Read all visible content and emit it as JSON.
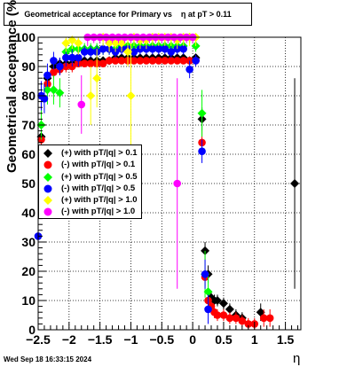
{
  "chart_data": {
    "type": "scatter",
    "title": "Geometrical acceptance for Primary vs    η at pT > 0.11",
    "xlabel": "η",
    "ylabel": "Geometrical acceptance (%)",
    "xlim": [
      -2.5,
      1.75
    ],
    "ylim": [
      0,
      100
    ],
    "x_ticks": [
      "−2.5",
      "−2",
      "−1.5",
      "−1",
      "−0.5",
      "0",
      "0.5",
      "1",
      "1.5"
    ],
    "y_ticks": [
      "0",
      "10",
      "20",
      "30",
      "40",
      "50",
      "60",
      "70",
      "80",
      "90",
      "100"
    ],
    "grid": true,
    "legend_position": "left-middle",
    "series": [
      {
        "name": "(+) with pT/|q| > 0.1",
        "color": "#000000",
        "marker": "diamond",
        "points": [
          [
            -2.45,
            66
          ],
          [
            -2.35,
            86
          ],
          [
            -2.25,
            90
          ],
          [
            -2.15,
            91
          ],
          [
            -2.05,
            91
          ],
          [
            -1.95,
            91
          ],
          [
            -1.85,
            92
          ],
          [
            -1.75,
            92
          ],
          [
            -1.65,
            92
          ],
          [
            -1.55,
            92
          ],
          [
            -1.45,
            92
          ],
          [
            -1.35,
            92
          ],
          [
            -1.25,
            93
          ],
          [
            -1.15,
            93
          ],
          [
            -1.05,
            93
          ],
          [
            -0.95,
            93
          ],
          [
            -0.85,
            93
          ],
          [
            -0.75,
            93
          ],
          [
            -0.65,
            93
          ],
          [
            -0.55,
            93
          ],
          [
            -0.45,
            93
          ],
          [
            -0.35,
            93
          ],
          [
            -0.25,
            93
          ],
          [
            -0.15,
            93
          ],
          [
            -0.05,
            92
          ],
          [
            0.05,
            93
          ],
          [
            0.15,
            72
          ],
          [
            0.2,
            27
          ],
          [
            0.25,
            19
          ],
          [
            0.3,
            11
          ],
          [
            0.35,
            10
          ],
          [
            0.4,
            10
          ],
          [
            0.5,
            9
          ],
          [
            0.6,
            7
          ],
          [
            0.7,
            5
          ],
          [
            0.8,
            4
          ],
          [
            1.1,
            6
          ],
          [
            1.65,
            50
          ]
        ],
        "errors": [
          2,
          3,
          2,
          2,
          2,
          2,
          1,
          1,
          1,
          1,
          1,
          1,
          1,
          1,
          1,
          1,
          1,
          1,
          1,
          1,
          1,
          1,
          1,
          1,
          1,
          1,
          4,
          3,
          3,
          2,
          2,
          2,
          2,
          2,
          2,
          2,
          3,
          36
        ]
      },
      {
        "name": "(-) with pT/|q| > 0.1",
        "color": "#ff0000",
        "marker": "circle",
        "points": [
          [
            -2.45,
            65
          ],
          [
            -2.35,
            84
          ],
          [
            -2.25,
            88
          ],
          [
            -2.15,
            89
          ],
          [
            -2.05,
            90
          ],
          [
            -1.95,
            90
          ],
          [
            -1.85,
            91
          ],
          [
            -1.75,
            91
          ],
          [
            -1.65,
            91
          ],
          [
            -1.55,
            91
          ],
          [
            -1.45,
            91
          ],
          [
            -1.35,
            92
          ],
          [
            -1.25,
            92
          ],
          [
            -1.15,
            92
          ],
          [
            -1.05,
            92
          ],
          [
            -0.95,
            92
          ],
          [
            -0.85,
            92
          ],
          [
            -0.75,
            92
          ],
          [
            -0.65,
            92
          ],
          [
            -0.55,
            92
          ],
          [
            -0.45,
            92
          ],
          [
            -0.35,
            92
          ],
          [
            -0.25,
            92
          ],
          [
            -0.15,
            92
          ],
          [
            -0.05,
            92
          ],
          [
            0.05,
            92
          ],
          [
            0.15,
            64
          ],
          [
            0.2,
            18
          ],
          [
            0.25,
            10
          ],
          [
            0.3,
            8
          ],
          [
            0.35,
            6
          ],
          [
            0.4,
            5
          ],
          [
            0.5,
            5
          ],
          [
            0.6,
            4
          ],
          [
            0.7,
            4
          ],
          [
            0.8,
            3
          ],
          [
            0.9,
            2
          ],
          [
            1.0,
            2
          ],
          [
            1.15,
            4
          ],
          [
            1.25,
            4
          ]
        ],
        "errors": [
          2,
          3,
          2,
          2,
          2,
          2,
          1,
          1,
          1,
          1,
          1,
          1,
          1,
          1,
          1,
          1,
          1,
          1,
          1,
          1,
          1,
          1,
          1,
          1,
          1,
          1,
          4,
          3,
          2,
          2,
          2,
          2,
          2,
          2,
          2,
          2,
          2,
          2,
          3,
          3
        ]
      },
      {
        "name": "(+) with pT/|q| > 0.5",
        "color": "#00ff00",
        "marker": "diamond",
        "points": [
          [
            -2.45,
            70
          ],
          [
            -2.35,
            82
          ],
          [
            -2.25,
            82
          ],
          [
            -2.15,
            81
          ],
          [
            -2.05,
            95
          ],
          [
            -1.95,
            96
          ],
          [
            -1.85,
            96
          ],
          [
            -1.75,
            96
          ],
          [
            -1.65,
            96
          ],
          [
            -1.55,
            96
          ],
          [
            -1.45,
            96
          ],
          [
            -1.35,
            96
          ],
          [
            -1.25,
            96
          ],
          [
            -1.15,
            97
          ],
          [
            -1.05,
            97
          ],
          [
            -0.95,
            97
          ],
          [
            -0.85,
            97
          ],
          [
            -0.75,
            97
          ],
          [
            -0.65,
            97
          ],
          [
            -0.55,
            97
          ],
          [
            -0.45,
            97
          ],
          [
            -0.35,
            97
          ],
          [
            -0.25,
            97
          ],
          [
            -0.15,
            97
          ],
          [
            -0.05,
            100
          ],
          [
            0.05,
            97
          ],
          [
            0.15,
            74
          ],
          [
            0.2,
            19
          ],
          [
            0.25,
            13
          ]
        ],
        "errors": [
          5,
          5,
          5,
          5,
          3,
          2,
          2,
          2,
          2,
          2,
          2,
          2,
          2,
          2,
          2,
          2,
          2,
          2,
          2,
          2,
          2,
          2,
          2,
          2,
          2,
          2,
          8,
          8,
          6
        ]
      },
      {
        "name": "(-) with pT/|q| > 0.5",
        "color": "#0000ff",
        "marker": "circle",
        "points": [
          [
            -2.5,
            32
          ],
          [
            -2.45,
            80
          ],
          [
            -2.4,
            79
          ],
          [
            -2.35,
            87
          ],
          [
            -2.25,
            92
          ],
          [
            -2.15,
            90
          ],
          [
            -2.05,
            93
          ],
          [
            -1.95,
            93
          ],
          [
            -1.85,
            93
          ],
          [
            -1.75,
            95
          ],
          [
            -1.65,
            95
          ],
          [
            -1.55,
            95
          ],
          [
            -1.45,
            96
          ],
          [
            -1.35,
            96
          ],
          [
            -1.25,
            95
          ],
          [
            -1.15,
            96
          ],
          [
            -1.05,
            96
          ],
          [
            -0.95,
            95
          ],
          [
            -0.85,
            96
          ],
          [
            -0.75,
            96
          ],
          [
            -0.65,
            96
          ],
          [
            -0.55,
            96
          ],
          [
            -0.45,
            96
          ],
          [
            -0.35,
            95
          ],
          [
            -0.25,
            96
          ],
          [
            -0.15,
            96
          ],
          [
            -0.05,
            89
          ],
          [
            0.05,
            92
          ],
          [
            0.15,
            61
          ],
          [
            0.2,
            19
          ],
          [
            0.25,
            7
          ]
        ],
        "errors": [
          12,
          5,
          5,
          4,
          3,
          3,
          3,
          3,
          3,
          2,
          2,
          2,
          2,
          2,
          2,
          2,
          2,
          2,
          2,
          2,
          2,
          2,
          2,
          2,
          2,
          2,
          3,
          2,
          4,
          5,
          5
        ]
      },
      {
        "name": "(+) with pT/|q| > 1.0",
        "color": "#ffff00",
        "marker": "diamond",
        "points": [
          [
            -2.05,
            98
          ],
          [
            -1.95,
            99
          ],
          [
            -1.85,
            98
          ],
          [
            -1.65,
            80
          ],
          [
            -1.55,
            86
          ],
          [
            -1.45,
            100
          ],
          [
            -1.35,
            98
          ],
          [
            -1.25,
            98
          ],
          [
            -1.15,
            98
          ],
          [
            -1.05,
            95
          ],
          [
            -1.0,
            80
          ],
          [
            -0.95,
            100
          ],
          [
            -0.85,
            99
          ],
          [
            -0.75,
            99
          ],
          [
            -0.65,
            100
          ],
          [
            -0.55,
            100
          ],
          [
            -0.45,
            100
          ],
          [
            -0.35,
            100
          ],
          [
            -0.25,
            99
          ],
          [
            -0.15,
            100
          ],
          [
            -0.05,
            100
          ],
          [
            0.05,
            100
          ]
        ],
        "errors": [
          3,
          3,
          4,
          10,
          10,
          3,
          3,
          3,
          3,
          5,
          18,
          3,
          3,
          3,
          3,
          3,
          3,
          3,
          3,
          3,
          3,
          3
        ]
      },
      {
        "name": "(-) with pT/|q| > 1.0",
        "color": "#ff00ff",
        "marker": "circle",
        "points": [
          [
            -1.8,
            77
          ],
          [
            -1.7,
            100
          ],
          [
            -1.6,
            100
          ],
          [
            -1.5,
            100
          ],
          [
            -1.4,
            100
          ],
          [
            -1.3,
            100
          ],
          [
            -1.2,
            100
          ],
          [
            -1.1,
            100
          ],
          [
            -1.0,
            100
          ],
          [
            -0.9,
            100
          ],
          [
            -0.8,
            100
          ],
          [
            -0.7,
            100
          ],
          [
            -0.6,
            100
          ],
          [
            -0.5,
            100
          ],
          [
            -0.4,
            100
          ],
          [
            -0.3,
            100
          ],
          [
            -0.2,
            100
          ],
          [
            -0.1,
            100
          ],
          [
            0.0,
            100
          ],
          [
            -0.25,
            50
          ]
        ],
        "errors": [
          10,
          3,
          2,
          2,
          2,
          2,
          2,
          2,
          2,
          2,
          2,
          2,
          2,
          2,
          2,
          2,
          2,
          2,
          2,
          36
        ]
      }
    ]
  },
  "datestamp": "Wed Sep 18 16:33:15 2024"
}
